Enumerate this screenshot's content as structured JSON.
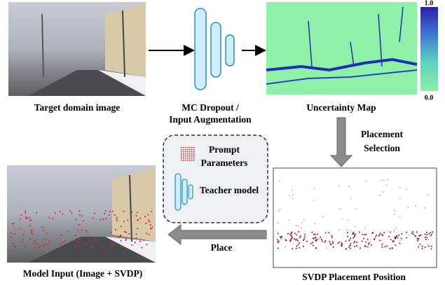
{
  "target_image": {
    "caption": "Target domain image"
  },
  "uncertainty_estimation": {
    "lines": [
      "MC Dropout /",
      "Input Augmentation"
    ]
  },
  "uncertainty_map": {
    "caption": "Uncertainty Map",
    "colorbar_max": "1.0",
    "colorbar_min": "0.0"
  },
  "placement_selection": {
    "lines": [
      "Placement",
      "Selection"
    ]
  },
  "svdp_position": {
    "caption": "SVDP Placement Position"
  },
  "prompt_box": {
    "prompt_lines": [
      "Prompt",
      "Parameters"
    ],
    "teacher": "Teacher model"
  },
  "place": {
    "label": "Place"
  },
  "model_input": {
    "caption": "Model Input (Image + SVDP)"
  }
}
